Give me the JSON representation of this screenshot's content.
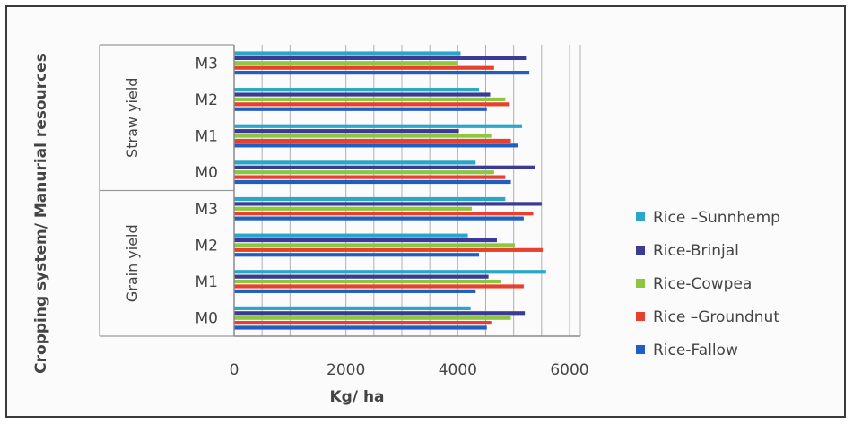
{
  "chart_data": {
    "type": "bar",
    "orientation": "horizontal",
    "ylabel": "Cropping system/ Manurial resources",
    "xlabel": "Kg/ ha",
    "xlim": [
      0,
      6000
    ],
    "xticks": [
      "0",
      "2000",
      "4000",
      "6000"
    ],
    "groups": [
      {
        "label": "Straw yield",
        "categories": [
          "M3",
          "M2",
          "M1",
          "M0"
        ]
      },
      {
        "label": "Grain yield",
        "categories": [
          "M3",
          "M2",
          "M1",
          "M0"
        ]
      }
    ],
    "categories": [
      "Straw M3",
      "Straw M2",
      "Straw M1",
      "Straw M0",
      "Grain M3",
      "Grain M2",
      "Grain M1",
      "Grain M0"
    ],
    "series": [
      {
        "name": "Rice –Sunnhemp",
        "color": "#2aa7c8",
        "values": [
          4050,
          4380,
          5150,
          4320,
          4850,
          4180,
          5580,
          4230
        ]
      },
      {
        "name": "Rice-Brinjal",
        "color": "#3b3b96",
        "values": [
          5220,
          4580,
          4020,
          5380,
          5500,
          4700,
          4550,
          5200
        ]
      },
      {
        "name": "Rice-Cowpea",
        "color": "#8dc63f",
        "values": [
          4000,
          4850,
          4600,
          4650,
          4250,
          5020,
          4780,
          4950
        ]
      },
      {
        "name": "Rice –Groundnut",
        "color": "#e8402e",
        "values": [
          4650,
          4930,
          4950,
          4850,
          5350,
          5520,
          5180,
          4600
        ]
      },
      {
        "name": "Rice-Fallow",
        "color": "#1f5fc2",
        "values": [
          5280,
          4520,
          5070,
          4950,
          5180,
          4380,
          4320,
          4520
        ]
      }
    ],
    "legend": "right",
    "grid": true
  }
}
